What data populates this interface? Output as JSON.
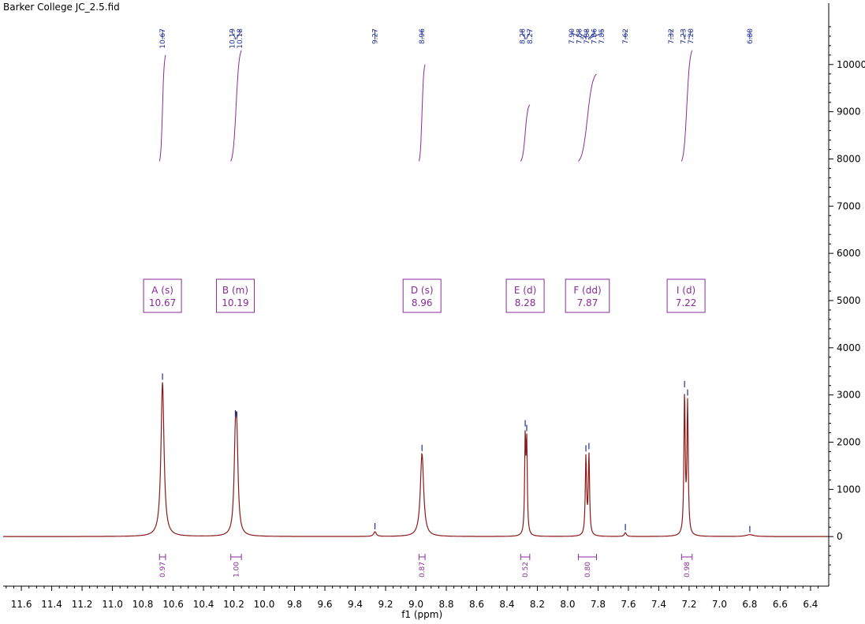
{
  "file_title": "Barker College JC_2.5.fid",
  "colors": {
    "spectrum": "#8b1a1a",
    "peak_labels": "#1f2f8f",
    "integrals": "#8a2b9a",
    "axis": "#000000"
  },
  "chart_data": {
    "type": "line",
    "title": "",
    "xlabel": "f1 (ppm)",
    "ylabel": "",
    "x_reversed": true,
    "xlim": [
      11.72,
      6.28
    ],
    "ylim": [
      -1050,
      11300
    ],
    "x_ticks": [
      11.6,
      11.4,
      11.2,
      11.0,
      10.8,
      10.6,
      10.4,
      10.2,
      10.0,
      9.8,
      9.6,
      9.4,
      9.2,
      9.0,
      8.8,
      8.6,
      8.4,
      8.2,
      8.0,
      7.8,
      7.6,
      7.4,
      7.2,
      7.0,
      6.8,
      6.6,
      6.4
    ],
    "x_tick_labels": [
      "11.6",
      "11.4",
      "11.2",
      "11.0",
      "10.8",
      "10.6",
      "10.4",
      "10.2",
      "10.0",
      "9.8",
      "9.6",
      "9.4",
      "9.2",
      "9.0",
      "8.8",
      "8.6",
      "8.4",
      "8.2",
      "8.0",
      "7.8",
      "7.6",
      "7.4",
      "7.2",
      "7.0",
      "6.8",
      "6.6",
      "6.4"
    ],
    "y_ticks": [
      0,
      1000,
      2000,
      3000,
      4000,
      5000,
      6000,
      7000,
      8000,
      9000,
      10000
    ],
    "y_tick_labels": [
      "0",
      "1000",
      "2000",
      "3000",
      "4000",
      "5000",
      "6000",
      "7000",
      "8000",
      "9000",
      "10000"
    ],
    "grid": false,
    "y_axis_side": "right",
    "peaks": [
      {
        "ppm": 10.67,
        "height": 3270,
        "width": 0.012
      },
      {
        "ppm": 10.19,
        "height": 1680,
        "width": 0.01
      },
      {
        "ppm": 10.18,
        "height": 1620,
        "width": 0.01
      },
      {
        "ppm": 9.27,
        "height": 100,
        "width": 0.01
      },
      {
        "ppm": 8.96,
        "height": 1760,
        "width": 0.013
      },
      {
        "ppm": 8.28,
        "height": 1970,
        "width": 0.0045
      },
      {
        "ppm": 8.27,
        "height": 1850,
        "width": 0.0045
      },
      {
        "ppm": 7.88,
        "height": 1650,
        "width": 0.005
      },
      {
        "ppm": 7.86,
        "height": 1700,
        "width": 0.005
      },
      {
        "ppm": 7.62,
        "height": 80,
        "width": 0.008
      },
      {
        "ppm": 7.23,
        "height": 2950,
        "width": 0.005
      },
      {
        "ppm": 7.21,
        "height": 2760,
        "width": 0.005
      },
      {
        "ppm": 6.8,
        "height": 40,
        "width": 0.03
      }
    ],
    "peak_labels": [
      "10.67",
      "10.19",
      "10.18",
      "9.27",
      "8.96",
      "8.28",
      "8.27",
      "7.90",
      "7.88",
      "7.88",
      "7.86",
      "7.85",
      "7.62",
      "7.32",
      "7.23",
      "7.20",
      "6.80"
    ],
    "peak_label_ppm": [
      10.67,
      10.19,
      10.18,
      9.27,
      8.96,
      8.28,
      8.27,
      7.9,
      7.88,
      7.88,
      7.86,
      7.85,
      7.62,
      7.32,
      7.23,
      7.2,
      6.8
    ],
    "multiplets": [
      {
        "letter_type": "A (s)",
        "shift": "10.67",
        "ppm": 10.67
      },
      {
        "letter_type": "B (m)",
        "shift": "10.19",
        "ppm": 10.19
      },
      {
        "letter_type": "D (s)",
        "shift": "8.96",
        "ppm": 8.96
      },
      {
        "letter_type": "E (d)",
        "shift": "8.28",
        "ppm": 8.28
      },
      {
        "letter_type": "F (dd)",
        "shift": "7.87",
        "ppm": 7.87
      },
      {
        "letter_type": "I (d)",
        "shift": "7.22",
        "ppm": 7.22
      }
    ],
    "integrals": [
      {
        "value": "0.97",
        "from": 10.69,
        "to": 10.65,
        "curve_start": 7950,
        "curve_end": 10200
      },
      {
        "value": "1.00",
        "from": 10.22,
        "to": 10.15,
        "curve_start": 7950,
        "curve_end": 10300
      },
      {
        "value": "0.87",
        "from": 8.98,
        "to": 8.94,
        "curve_start": 7950,
        "curve_end": 10000
      },
      {
        "value": "0.52",
        "from": 8.31,
        "to": 8.25,
        "curve_start": 7950,
        "curve_end": 9150
      },
      {
        "value": "0.80",
        "from": 7.93,
        "to": 7.81,
        "curve_start": 7950,
        "curve_end": 9800
      },
      {
        "value": "0.98",
        "from": 7.25,
        "to": 7.18,
        "curve_start": 7950,
        "curve_end": 10300
      }
    ]
  }
}
